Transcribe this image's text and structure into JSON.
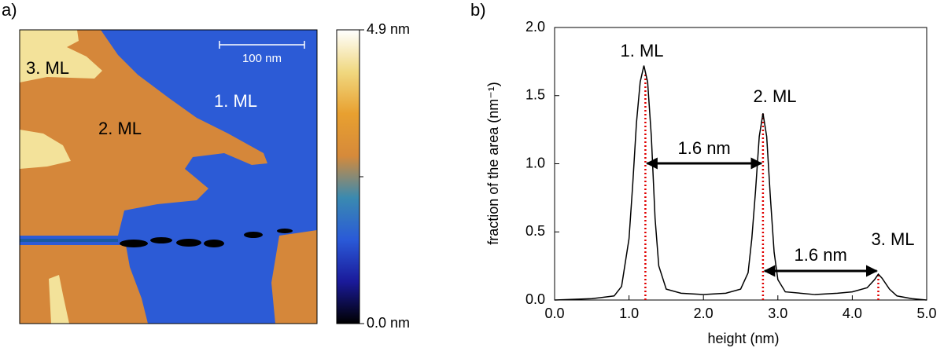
{
  "chart_data": [
    {
      "type": "image",
      "panel_label": "a)",
      "annotations": [
        "3. ML",
        "2. ML",
        "1. ML"
      ],
      "scale_bar": "100 nm",
      "colorbar": {
        "lim": [
          0,
          4.9
        ],
        "ticks": [
          {
            "value": 0,
            "label": "0.0 nm"
          },
          {
            "value": 4.9,
            "label": "4.9 nm"
          }
        ],
        "colormap": [
          "#000000",
          "#1a1a9a",
          "#2a5ad8",
          "#3a8ab0",
          "#d68a3a",
          "#e8a030",
          "#f0d880",
          "#ffffff"
        ]
      }
    },
    {
      "type": "line",
      "panel_label": "b)",
      "xlabel": "height (nm)",
      "ylabel": "fraction of the area (nm⁻¹)",
      "x": [
        0.0,
        0.5,
        0.8,
        0.9,
        1.0,
        1.05,
        1.1,
        1.15,
        1.2,
        1.25,
        1.3,
        1.35,
        1.4,
        1.5,
        1.7,
        2.0,
        2.3,
        2.5,
        2.6,
        2.65,
        2.7,
        2.75,
        2.8,
        2.85,
        2.9,
        2.95,
        3.0,
        3.1,
        3.5,
        3.8,
        4.0,
        4.2,
        4.3,
        4.35,
        4.4,
        4.5,
        4.6,
        4.8,
        5.0
      ],
      "series": [
        {
          "color": "#000000",
          "values": [
            0.0,
            0.01,
            0.03,
            0.1,
            0.45,
            0.85,
            1.3,
            1.6,
            1.72,
            1.6,
            1.2,
            0.6,
            0.25,
            0.08,
            0.05,
            0.04,
            0.05,
            0.08,
            0.2,
            0.45,
            0.8,
            1.2,
            1.37,
            1.2,
            0.75,
            0.35,
            0.15,
            0.06,
            0.04,
            0.05,
            0.06,
            0.09,
            0.15,
            0.19,
            0.16,
            0.08,
            0.03,
            0.01,
            0.0
          ]
        }
      ],
      "xlim": [
        0,
        5
      ],
      "ylim": [
        0,
        2
      ],
      "xticks": [
        {
          "value": 0,
          "label": "0.0"
        },
        {
          "value": 1,
          "label": "1.0"
        },
        {
          "value": 2,
          "label": "2.0"
        },
        {
          "value": 3,
          "label": "3.0"
        },
        {
          "value": 4,
          "label": "4.0"
        },
        {
          "value": 5,
          "label": "5.0"
        }
      ],
      "yticks": [
        {
          "value": 0,
          "label": "0.0"
        },
        0.5,
        {
          "value": 1,
          "label": "1.0"
        },
        1.5,
        {
          "value": 2,
          "label": "2.0"
        }
      ],
      "peak_labels": [
        "1. ML",
        "2. ML",
        "3. ML"
      ],
      "markers": [
        1.22,
        2.8,
        4.35
      ],
      "marker_color": "#e00000",
      "arrow_labels": [
        "1.6 nm",
        "1.6 nm"
      ]
    }
  ]
}
